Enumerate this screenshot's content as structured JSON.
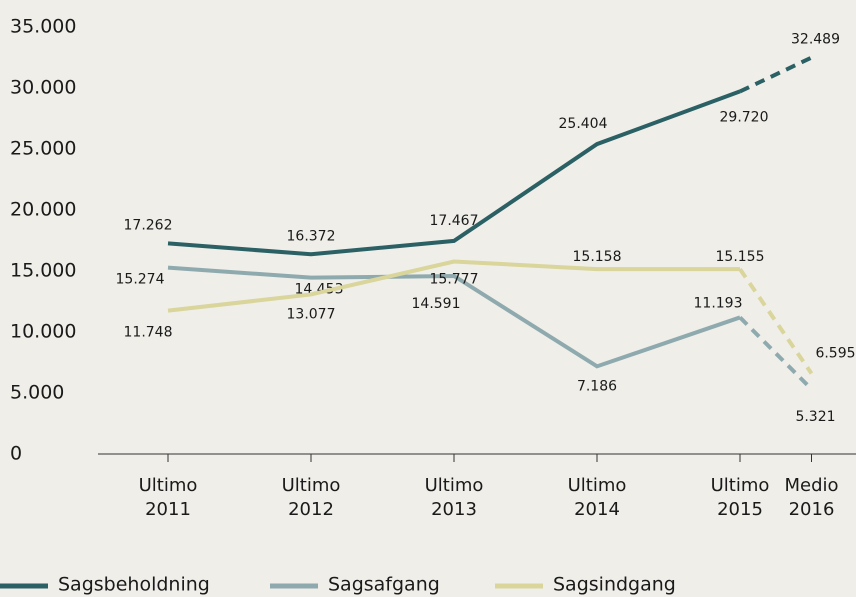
{
  "chart_data": {
    "type": "line",
    "categories": [
      "Ultimo\n2011",
      "Ultimo\n2012",
      "Ultimo\n2013",
      "Ultimo\n2014",
      "Ultimo\n2015",
      "Medio\n2016"
    ],
    "series": [
      {
        "name": "Sagsbeholdning",
        "color": "#2b6065",
        "values": [
          17262,
          16372,
          17467,
          25404,
          29720,
          32489
        ],
        "value_labels": [
          "17.262",
          "16.372",
          "17.467",
          "25.404",
          "29.720",
          "32.489"
        ]
      },
      {
        "name": "Sagsafgang",
        "color": "#8faaae",
        "values": [
          15274,
          14453,
          14591,
          7186,
          11193,
          5321
        ],
        "value_labels": [
          "15.274",
          "14.453",
          "14.591",
          "7.186",
          "11.193",
          "5.321"
        ]
      },
      {
        "name": "Sagsindgang",
        "color": "#d9d59b",
        "values": [
          11748,
          13077,
          15777,
          15158,
          15155,
          6595
        ],
        "value_labels": [
          "11.748",
          "13.077",
          "15.777",
          "15.158",
          "15.155",
          "6.595"
        ]
      }
    ],
    "ylim": [
      0,
      35000
    ],
    "yticks": [
      0,
      {
        "value": 5000,
        "label": "5.000"
      },
      {
        "value": 10000,
        "label": "10.000"
      },
      {
        "value": 15000,
        "label": "15.000"
      },
      {
        "value": 20000,
        "label": "20.000"
      },
      {
        "value": 25000,
        "label": "25.000"
      },
      {
        "value": 30000,
        "label": "30.000"
      },
      {
        "value": 35000,
        "label": "35.000"
      }
    ],
    "dash_last_segment": true,
    "legend": "bottom"
  }
}
